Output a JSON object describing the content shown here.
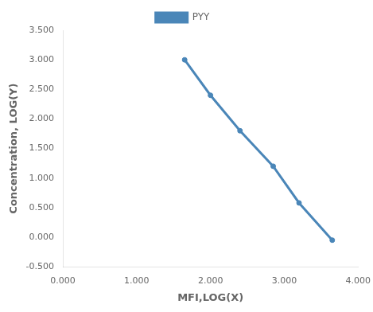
{
  "chart_data": {
    "type": "line",
    "x": [
      1.65,
      2.0,
      2.4,
      2.85,
      3.2,
      3.65
    ],
    "series": [
      {
        "name": "PYY",
        "color": "#4a86b8",
        "marker": "o",
        "values": [
          3.0,
          2.4,
          1.8,
          1.2,
          0.58,
          -0.05
        ]
      }
    ],
    "xlabel": "MFI,LOG(X)",
    "ylabel": "Concentration, LOG(Y)",
    "xlim": [
      0.0,
      4.0
    ],
    "ylim": [
      -0.5,
      3.5
    ],
    "xticks": [
      {
        "value": 0.0,
        "label": "0.000"
      },
      {
        "value": 1.0,
        "label": "1.000"
      },
      {
        "value": 2.0,
        "label": "2.000"
      },
      {
        "value": 3.0,
        "label": "3.000"
      },
      {
        "value": 4.0,
        "label": "4.000"
      }
    ],
    "yticks": [
      {
        "value": -0.5,
        "label": "-0.500"
      },
      {
        "value": 0.0,
        "label": "0.000"
      },
      {
        "value": 0.5,
        "label": "0.500"
      },
      {
        "value": 1.0,
        "label": "1.000"
      },
      {
        "value": 1.5,
        "label": "1.500"
      },
      {
        "value": 2.0,
        "label": "2.000"
      },
      {
        "value": 2.5,
        "label": "2.500"
      },
      {
        "value": 3.0,
        "label": "3.000"
      },
      {
        "value": 3.5,
        "label": "3.500"
      }
    ],
    "grid": false,
    "legend": "top"
  }
}
